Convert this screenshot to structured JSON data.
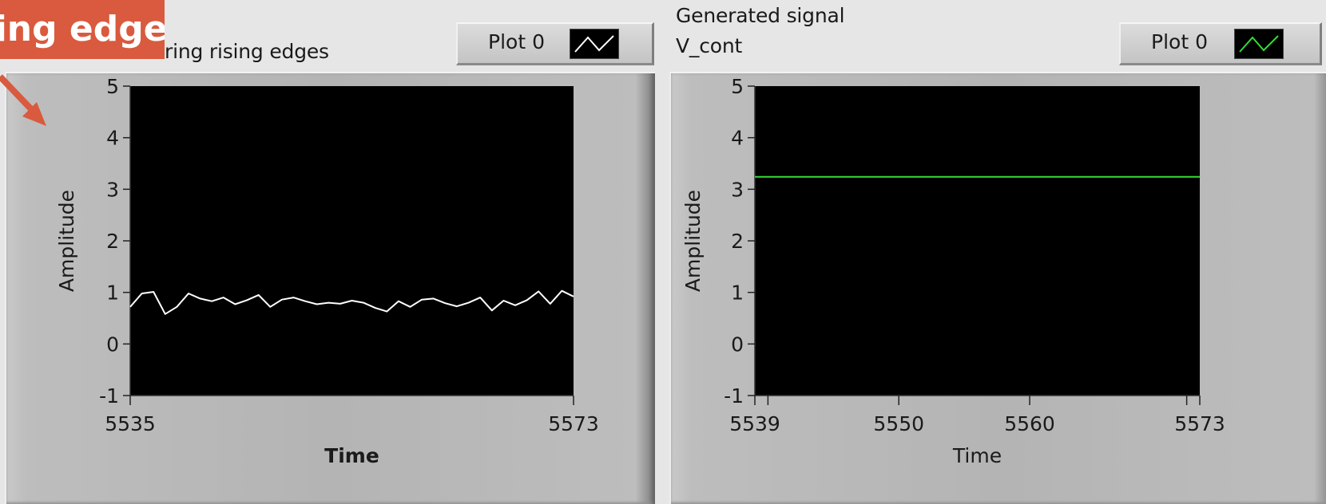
{
  "annotation": {
    "text": "ring edges"
  },
  "left_panel": {
    "caption": "ring rising edges",
    "legend_label": "Plot 0",
    "trace_color": "#ffffff"
  },
  "right_panel": {
    "caption_line1": "Generated signal",
    "caption_line2": "V_cont",
    "legend_label": "Plot 0",
    "trace_color": "#33dd33"
  },
  "chart_data": [
    {
      "type": "line",
      "xlabel": "Time",
      "ylabel": "Amplitude",
      "xlim": [
        5535,
        5573
      ],
      "ylim": [
        -1,
        5
      ],
      "x_ticks": [
        5535,
        5573
      ],
      "y_ticks": [
        -1,
        0,
        1,
        2,
        3,
        4,
        5
      ],
      "series": [
        {
          "x": [
            5535,
            5536,
            5537,
            5538,
            5539,
            5540,
            5541,
            5542,
            5543,
            5544,
            5545,
            5546,
            5547,
            5548,
            5549,
            5550,
            5551,
            5552,
            5553,
            5554,
            5555,
            5556,
            5557,
            5558,
            5559,
            5560,
            5561,
            5562,
            5563,
            5564,
            5565,
            5566,
            5567,
            5568,
            5569,
            5570,
            5571,
            5572,
            5573
          ],
          "values": [
            0.72,
            0.98,
            1.01,
            0.58,
            0.72,
            0.98,
            0.88,
            0.83,
            0.9,
            0.77,
            0.85,
            0.95,
            0.72,
            0.86,
            0.9,
            0.83,
            0.77,
            0.8,
            0.78,
            0.84,
            0.8,
            0.7,
            0.63,
            0.83,
            0.72,
            0.86,
            0.88,
            0.79,
            0.73,
            0.8,
            0.9,
            0.65,
            0.84,
            0.75,
            0.85,
            1.02,
            0.78,
            1.03,
            0.92
          ]
        }
      ]
    },
    {
      "type": "line",
      "xlabel": "Time",
      "ylabel": "Amplitude",
      "xlim": [
        5539,
        5573
      ],
      "ylim": [
        -1,
        5
      ],
      "x_ticks": [
        5539,
        5550,
        5560,
        5573
      ],
      "y_ticks": [
        -1,
        0,
        1,
        2,
        3,
        4,
        5
      ],
      "series": [
        {
          "x": [
            5539,
            5573
          ],
          "values": [
            3.24,
            3.24
          ]
        }
      ]
    }
  ]
}
